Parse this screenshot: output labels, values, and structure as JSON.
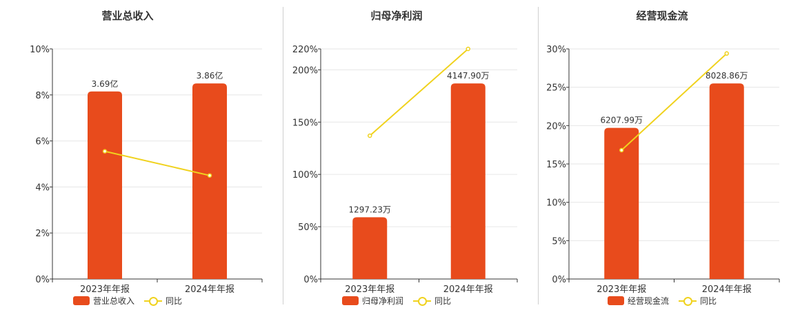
{
  "colors": {
    "bar": "#E84B1C",
    "line": "#F0D21E",
    "grid": "#e6e6e6",
    "axis": "#333333"
  },
  "chart_data": [
    {
      "type": "bar+line",
      "title": "营业总收入",
      "categories": [
        "2023年年报",
        "2024年年报"
      ],
      "bar_series": {
        "name": "营业总收入",
        "values": [
          8.15,
          8.5
        ],
        "labels": [
          "3.69亿",
          "3.86亿"
        ]
      },
      "line_series": {
        "name": "同比",
        "values": [
          5.55,
          4.5
        ]
      },
      "y_ticks": [
        "0%",
        "2%",
        "4%",
        "6%",
        "8%",
        "10%"
      ],
      "y_tick_values": [
        0,
        2,
        4,
        6,
        8,
        10
      ],
      "ylim": [
        0,
        10
      ],
      "grid": true,
      "legend": "bottom"
    },
    {
      "type": "bar+line",
      "title": "归母净利润",
      "categories": [
        "2023年年报",
        "2024年年报"
      ],
      "bar_series": {
        "name": "归母净利润",
        "values": [
          59,
          187
        ],
        "labels": [
          "1297.23万",
          "4147.90万"
        ]
      },
      "line_series": {
        "name": "同比",
        "values": [
          137,
          220
        ]
      },
      "y_ticks": [
        "0%",
        "50%",
        "100%",
        "150%",
        "200%",
        "220%"
      ],
      "y_tick_values": [
        0,
        50,
        100,
        150,
        200,
        220
      ],
      "ylim": [
        0,
        220
      ],
      "grid": true,
      "legend": "bottom"
    },
    {
      "type": "bar+line",
      "title": "经营现金流",
      "categories": [
        "2023年年报",
        "2024年年报"
      ],
      "bar_series": {
        "name": "经营现金流",
        "values": [
          19.7,
          25.5
        ],
        "labels": [
          "6207.99万",
          "8028.86万"
        ]
      },
      "line_series": {
        "name": "同比",
        "values": [
          16.8,
          29.4
        ]
      },
      "y_ticks": [
        "0%",
        "5%",
        "10%",
        "15%",
        "20%",
        "25%",
        "30%"
      ],
      "y_tick_values": [
        0,
        5,
        10,
        15,
        20,
        25,
        30
      ],
      "ylim": [
        0,
        30
      ],
      "grid": true,
      "legend": "bottom"
    }
  ]
}
